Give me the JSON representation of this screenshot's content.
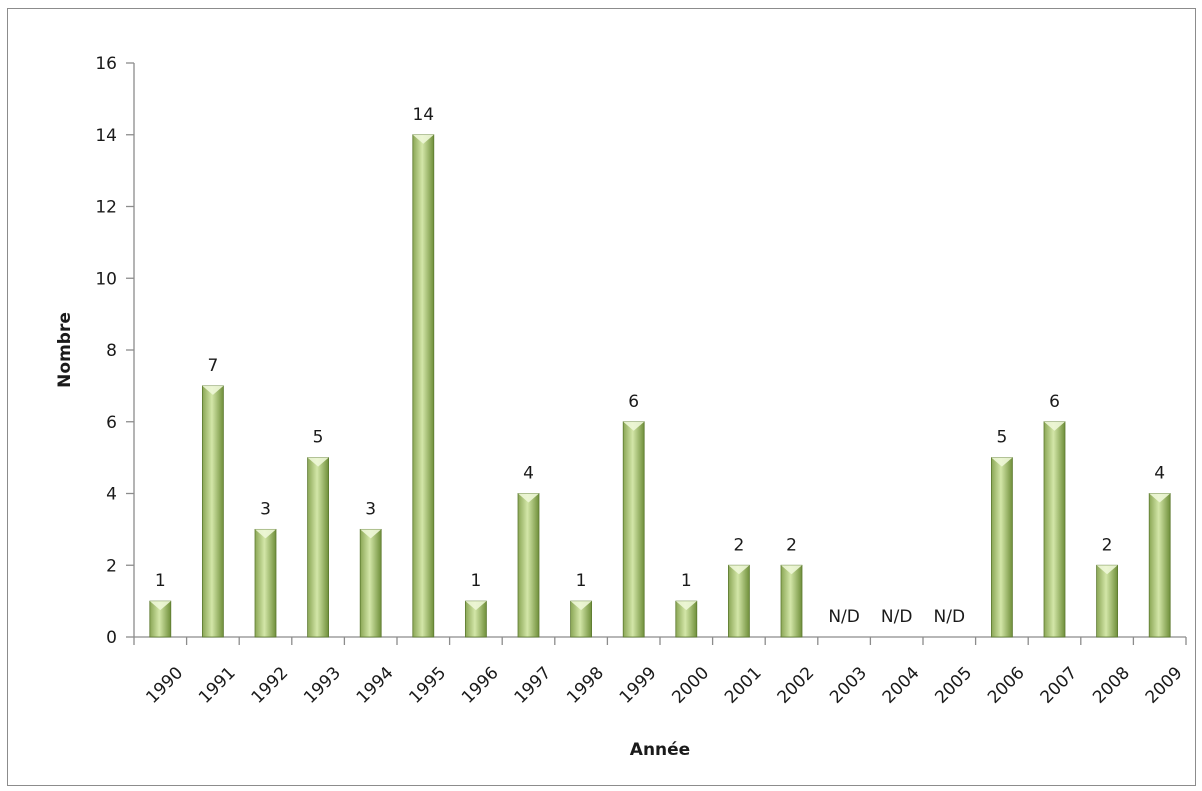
{
  "chart_data": {
    "type": "bar",
    "title": "",
    "xlabel": "Année",
    "ylabel": "Nombre",
    "ylim": [
      0,
      16
    ],
    "yticks": [
      0,
      2,
      4,
      6,
      8,
      10,
      12,
      14,
      16
    ],
    "grid": false,
    "legend": "none",
    "categories": [
      "1990",
      "1991",
      "1992",
      "1993",
      "1994",
      "1995",
      "1996",
      "1997",
      "1998",
      "1999",
      "2000",
      "2001",
      "2002",
      "2003",
      "2004",
      "2005",
      "2006",
      "2007",
      "2008",
      "2009"
    ],
    "values": [
      1,
      7,
      3,
      5,
      3,
      14,
      1,
      4,
      1,
      6,
      1,
      2,
      2,
      null,
      null,
      null,
      5,
      6,
      2,
      4
    ],
    "data_labels": [
      "1",
      "7",
      "3",
      "5",
      "3",
      "14",
      "1",
      "4",
      "1",
      "6",
      "1",
      "2",
      "2",
      "N/D",
      "N/D",
      "N/D",
      "5",
      "6",
      "2",
      "4"
    ],
    "bar_color_light": "#d3e6a8",
    "bar_color_dark": "#6f8f3a"
  }
}
